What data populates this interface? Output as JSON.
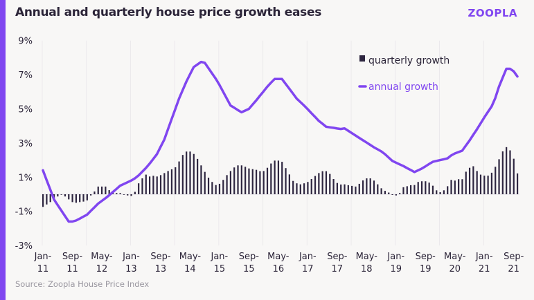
{
  "header": {
    "title": "Annual and quarterly house price growth eases",
    "logo": "ZOOPLA"
  },
  "footer": {
    "source": "Source: Zoopla House Price Index"
  },
  "colors": {
    "accent": "#8046f0",
    "bars": "#2e2640",
    "text": "#2b2438"
  },
  "chart_data": {
    "type": "bar+line",
    "title": "Annual and quarterly house price growth eases",
    "ylim": [
      -3,
      9
    ],
    "y_ticks": [
      -3,
      -1,
      1,
      3,
      5,
      7,
      9
    ],
    "y_tick_labels": [
      "-3%",
      "-1%",
      "1%",
      "3%",
      "5%",
      "7%",
      "9%"
    ],
    "x_start": "Jan-11",
    "x_end": "Oct-21",
    "x_tick_labels": [
      [
        "Jan-",
        "11"
      ],
      [
        "Sep-",
        "11"
      ],
      [
        "May-",
        "12"
      ],
      [
        "Jan-",
        "13"
      ],
      [
        "Sep-",
        "13"
      ],
      [
        "May-",
        "14"
      ],
      [
        "Jan-",
        "15"
      ],
      [
        "Sep-",
        "15"
      ],
      [
        "May-",
        "16"
      ],
      [
        "Jan-",
        "17"
      ],
      [
        "Sep-",
        "17"
      ],
      [
        "May-",
        "18"
      ],
      [
        "Jan-",
        "19"
      ],
      [
        "Sep-",
        "19"
      ],
      [
        "May-",
        "20"
      ],
      [
        "Jan-",
        "21"
      ],
      [
        "Sep-",
        "21"
      ]
    ],
    "grid": "vertical lines at each January",
    "legend": {
      "placement": "top-right",
      "entries": [
        "quarterly growth",
        "annual growth"
      ]
    },
    "series": [
      {
        "name": "quarterly growth",
        "type": "bar",
        "values": [
          -0.74,
          -0.6,
          -0.46,
          -0.3,
          -0.13,
          0,
          -0.13,
          -0.3,
          -0.46,
          -0.5,
          -0.46,
          -0.43,
          -0.36,
          -0.07,
          0.16,
          0.45,
          0.45,
          0.45,
          0.24,
          0.1,
          0.07,
          0.07,
          0,
          -0.07,
          -0.1,
          0.14,
          0.64,
          0.93,
          1.15,
          1.04,
          1.08,
          1.04,
          1.12,
          1.24,
          1.36,
          1.46,
          1.58,
          1.92,
          2.3,
          2.5,
          2.5,
          2.36,
          2.07,
          1.69,
          1.31,
          0.97,
          0.72,
          0.54,
          0.61,
          0.84,
          1.12,
          1.36,
          1.57,
          1.69,
          1.69,
          1.61,
          1.51,
          1.47,
          1.43,
          1.35,
          1.36,
          1.55,
          1.8,
          1.97,
          1.97,
          1.9,
          1.53,
          1.16,
          0.78,
          0.64,
          0.58,
          0.64,
          0.72,
          0.89,
          1.07,
          1.24,
          1.35,
          1.35,
          1.19,
          0.89,
          0.66,
          0.57,
          0.58,
          0.53,
          0.49,
          0.45,
          0.61,
          0.81,
          0.93,
          0.93,
          0.8,
          0.58,
          0.35,
          0.2,
          0.1,
          -0.04,
          -0.07,
          0.07,
          0.41,
          0.47,
          0.53,
          0.54,
          0.72,
          0.76,
          0.76,
          0.68,
          0.5,
          0.23,
          0.12,
          0.23,
          0.47,
          0.84,
          0.8,
          0.88,
          0.88,
          1.32,
          1.55,
          1.64,
          1.36,
          1.15,
          1.09,
          1.09,
          1.26,
          1.61,
          2.05,
          2.51,
          2.76,
          2.57,
          2.08,
          1.22
        ]
      },
      {
        "name": "annual growth",
        "type": "line",
        "values": [
          1.4,
          0.83,
          0.27,
          -0.3,
          -0.63,
          -0.95,
          -1.28,
          -1.6,
          -1.6,
          -1.54,
          -1.43,
          -1.31,
          -1.2,
          -0.98,
          -0.77,
          -0.55,
          -0.39,
          -0.23,
          -0.06,
          0.13,
          0.31,
          0.5,
          0.6,
          0.7,
          0.8,
          0.93,
          1.1,
          1.32,
          1.54,
          1.79,
          2.07,
          2.35,
          2.78,
          3.2,
          3.8,
          4.4,
          5.0,
          5.6,
          6.1,
          6.6,
          7.03,
          7.45,
          7.6,
          7.75,
          7.7,
          7.39,
          7.07,
          6.76,
          6.4,
          6.0,
          5.6,
          5.2,
          5.07,
          4.93,
          4.8,
          4.9,
          5.0,
          5.25,
          5.5,
          5.77,
          6.03,
          6.3,
          6.53,
          6.75,
          6.75,
          6.75,
          6.46,
          6.18,
          5.89,
          5.6,
          5.4,
          5.2,
          4.98,
          4.75,
          4.53,
          4.3,
          4.13,
          3.95,
          3.92,
          3.89,
          3.85,
          3.82,
          3.86,
          3.72,
          3.58,
          3.44,
          3.3,
          3.16,
          3.03,
          2.89,
          2.75,
          2.63,
          2.51,
          2.35,
          2.15,
          1.95,
          1.85,
          1.75,
          1.65,
          1.53,
          1.42,
          1.3,
          1.4,
          1.5,
          1.63,
          1.77,
          1.9,
          1.95,
          2.0,
          2.05,
          2.1,
          2.27,
          2.39,
          2.47,
          2.55,
          2.85,
          3.15,
          3.48,
          3.8,
          4.15,
          4.5,
          4.82,
          5.14,
          5.63,
          6.3,
          6.83,
          7.35,
          7.35,
          7.2,
          6.9
        ]
      }
    ]
  }
}
